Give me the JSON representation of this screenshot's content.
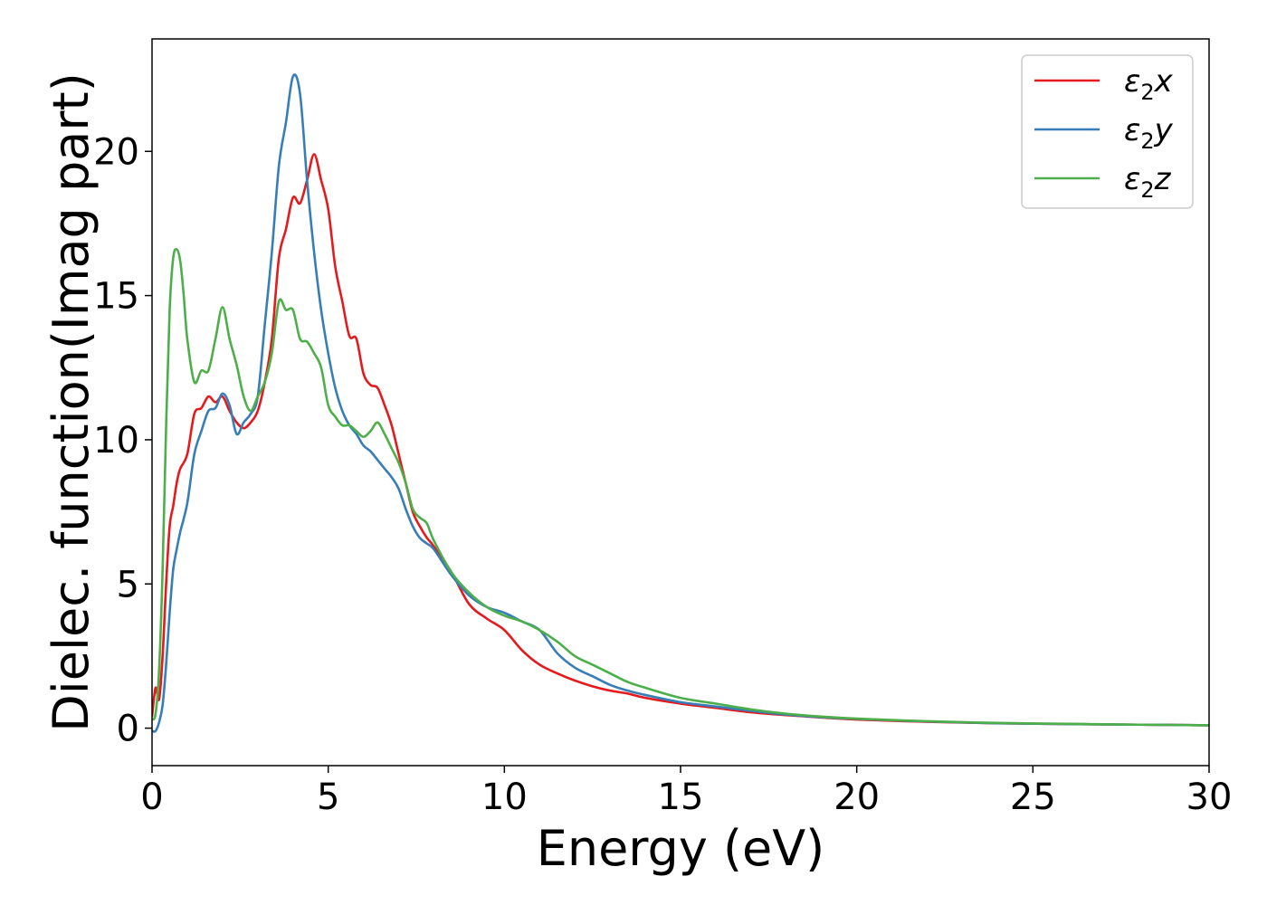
{
  "chart_data": {
    "type": "line",
    "title": "",
    "xlabel": "Energy (eV)",
    "ylabel": "Dielec. function(Imag part)",
    "xlim": [
      0,
      30
    ],
    "ylim": [
      -1.3,
      23.9
    ],
    "xticks": [
      0,
      5,
      10,
      15,
      20,
      25,
      30
    ],
    "yticks": [
      0,
      5,
      10,
      15,
      20
    ],
    "grid": false,
    "legend_position": "top-right",
    "colors": {
      "x": "#e41a1c",
      "y": "#377eb8",
      "z": "#4daf4a"
    },
    "series": [
      {
        "name": "ε2x",
        "legend_sym": "ε",
        "legend_sub": "2",
        "legend_var": "x",
        "color": "#e41a1c",
        "x": [
          0,
          0.1,
          0.2,
          0.3,
          0.4,
          0.5,
          0.6,
          0.7,
          0.8,
          1.0,
          1.2,
          1.4,
          1.6,
          1.8,
          2.0,
          2.2,
          2.4,
          2.6,
          2.8,
          3.0,
          3.2,
          3.4,
          3.6,
          3.8,
          4.0,
          4.2,
          4.4,
          4.6,
          4.8,
          5.0,
          5.2,
          5.4,
          5.6,
          5.8,
          6.0,
          6.2,
          6.4,
          6.6,
          6.8,
          7.0,
          7.2,
          7.4,
          7.6,
          7.8,
          8.0,
          8.5,
          9.0,
          9.5,
          10.0,
          10.5,
          11.0,
          11.5,
          12.0,
          12.5,
          13.0,
          13.5,
          14.0,
          15.0,
          16.0,
          17.0,
          18.0,
          19.0,
          20.0,
          22.0,
          24.0,
          26.0,
          28.0,
          30.0
        ],
        "y": [
          0.4,
          1.4,
          1.0,
          2.5,
          5.0,
          7.0,
          7.7,
          8.5,
          9.0,
          9.5,
          10.9,
          11.1,
          11.5,
          11.3,
          11.5,
          11.0,
          10.6,
          10.4,
          10.6,
          11.0,
          12.0,
          13.5,
          16.3,
          17.3,
          18.4,
          18.2,
          19.0,
          19.9,
          19.0,
          18.0,
          16.0,
          14.8,
          13.6,
          13.5,
          12.3,
          11.9,
          11.8,
          11.2,
          10.5,
          9.5,
          8.5,
          7.5,
          7.0,
          6.6,
          6.3,
          5.4,
          4.3,
          3.8,
          3.4,
          2.7,
          2.2,
          1.9,
          1.65,
          1.45,
          1.3,
          1.2,
          1.05,
          0.85,
          0.7,
          0.55,
          0.45,
          0.37,
          0.3,
          0.22,
          0.17,
          0.14,
          0.12,
          0.1
        ]
      },
      {
        "name": "ε2y",
        "legend_sym": "ε",
        "legend_sub": "2",
        "legend_var": "y",
        "color": "#377eb8",
        "x": [
          0,
          0.1,
          0.2,
          0.3,
          0.4,
          0.5,
          0.6,
          0.7,
          0.8,
          1.0,
          1.2,
          1.4,
          1.6,
          1.8,
          2.0,
          2.2,
          2.4,
          2.6,
          2.8,
          3.0,
          3.2,
          3.4,
          3.6,
          3.8,
          4.0,
          4.2,
          4.4,
          4.6,
          4.8,
          5.0,
          5.2,
          5.4,
          5.6,
          5.8,
          6.0,
          6.2,
          6.4,
          6.6,
          6.8,
          7.0,
          7.2,
          7.4,
          7.6,
          7.8,
          8.0,
          8.5,
          9.0,
          9.5,
          10.0,
          10.5,
          11.0,
          11.5,
          12.0,
          12.5,
          13.0,
          13.5,
          14.0,
          15.0,
          16.0,
          17.0,
          18.0,
          19.0,
          20.0,
          22.0,
          24.0,
          26.0,
          28.0,
          30.0
        ],
        "y": [
          -0.1,
          -0.1,
          0.2,
          0.8,
          2.2,
          4.0,
          5.5,
          6.2,
          6.8,
          7.8,
          9.5,
          10.3,
          11.0,
          11.1,
          11.6,
          11.2,
          10.2,
          10.6,
          10.9,
          11.5,
          14.0,
          16.5,
          19.5,
          21.0,
          22.6,
          22.0,
          19.0,
          16.5,
          14.5,
          13.0,
          11.8,
          11.0,
          10.5,
          10.2,
          9.8,
          9.6,
          9.3,
          9.0,
          8.7,
          8.3,
          7.6,
          7.0,
          6.6,
          6.4,
          6.2,
          5.3,
          4.6,
          4.2,
          4.0,
          3.7,
          3.4,
          2.6,
          2.1,
          1.8,
          1.5,
          1.3,
          1.15,
          0.9,
          0.75,
          0.6,
          0.47,
          0.38,
          0.32,
          0.23,
          0.17,
          0.14,
          0.12,
          0.1
        ]
      },
      {
        "name": "ε2z",
        "legend_sym": "ε",
        "legend_sub": "2",
        "legend_var": "z",
        "color": "#4daf4a",
        "x": [
          0,
          0.1,
          0.2,
          0.3,
          0.4,
          0.5,
          0.6,
          0.7,
          0.8,
          0.9,
          1.0,
          1.2,
          1.4,
          1.6,
          1.8,
          2.0,
          2.2,
          2.4,
          2.6,
          2.8,
          3.0,
          3.2,
          3.4,
          3.6,
          3.8,
          4.0,
          4.2,
          4.4,
          4.6,
          4.8,
          5.0,
          5.2,
          5.4,
          5.6,
          5.8,
          6.0,
          6.2,
          6.4,
          6.6,
          6.8,
          7.0,
          7.2,
          7.4,
          7.6,
          7.8,
          8.0,
          8.5,
          9.0,
          9.5,
          10.0,
          10.5,
          11.0,
          11.5,
          12.0,
          12.5,
          13.0,
          13.5,
          14.0,
          15.0,
          16.0,
          17.0,
          18.0,
          19.0,
          20.0,
          22.0,
          24.0,
          26.0,
          28.0,
          30.0
        ],
        "y": [
          0.3,
          0.5,
          2.0,
          5.5,
          10.5,
          14.5,
          16.3,
          16.6,
          16.2,
          15.0,
          13.5,
          12.0,
          12.4,
          12.4,
          13.5,
          14.6,
          13.5,
          12.6,
          11.5,
          11.0,
          11.5,
          12.0,
          13.0,
          14.8,
          14.5,
          14.5,
          13.5,
          13.4,
          13.0,
          12.5,
          11.2,
          10.8,
          10.5,
          10.5,
          10.3,
          10.1,
          10.3,
          10.6,
          10.2,
          9.7,
          9.2,
          8.5,
          7.6,
          7.3,
          7.1,
          6.5,
          5.4,
          4.7,
          4.2,
          3.9,
          3.7,
          3.4,
          3.0,
          2.5,
          2.2,
          1.9,
          1.6,
          1.4,
          1.05,
          0.85,
          0.65,
          0.5,
          0.4,
          0.33,
          0.24,
          0.18,
          0.15,
          0.12,
          0.1
        ]
      }
    ]
  }
}
